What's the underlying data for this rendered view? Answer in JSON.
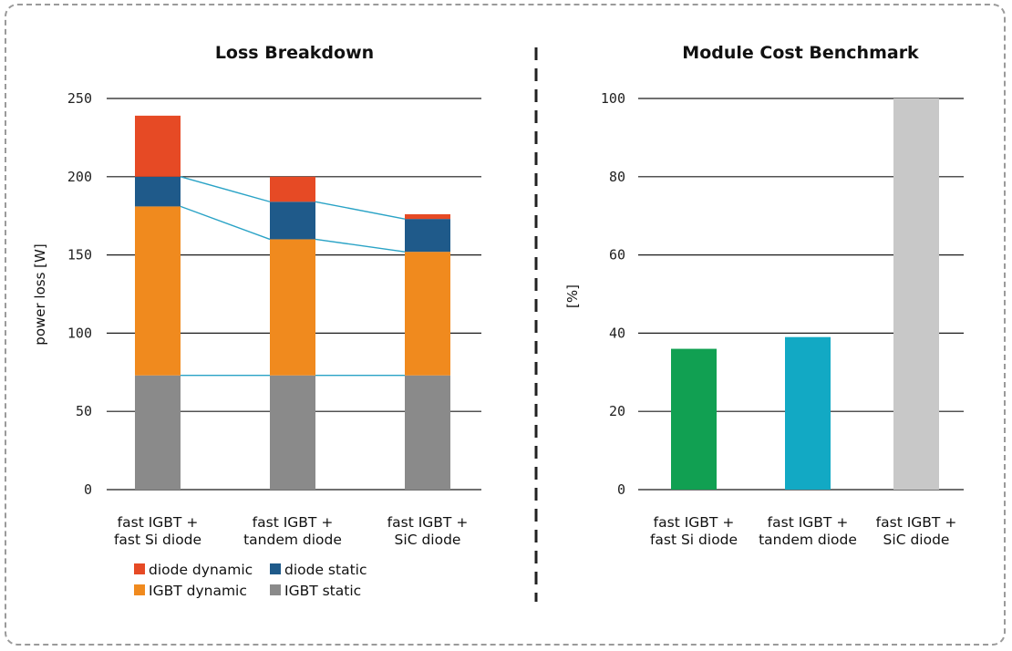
{
  "colors": {
    "diode_dynamic": "#e64a25",
    "diode_static": "#1f5a8a",
    "igbt_dynamic": "#f08a1e",
    "igbt_static": "#8a8a8a",
    "connector": "#2aa3c6",
    "cost_bars": [
      "#11a052",
      "#12a9c4",
      "#c8c8c8"
    ]
  },
  "chart_data": [
    {
      "type": "bar",
      "stacked": true,
      "title": "Loss Breakdown",
      "ylabel": "power loss [W]",
      "xlabel": "",
      "ylim": [
        0,
        250
      ],
      "yticks": [
        0,
        50,
        100,
        150,
        200,
        250
      ],
      "grid": true,
      "legend_position": "bottom",
      "categories": [
        [
          "fast IGBT +",
          "fast Si diode"
        ],
        [
          "fast IGBT +",
          "tandem diode"
        ],
        [
          "fast IGBT +",
          "SiC diode"
        ]
      ],
      "series": [
        {
          "name": "IGBT static",
          "key": "igbt_static",
          "values": [
            73,
            73,
            73
          ]
        },
        {
          "name": "IGBT dynamic",
          "key": "igbt_dynamic",
          "values": [
            108,
            87,
            79
          ]
        },
        {
          "name": "diode static",
          "key": "diode_static",
          "values": [
            19,
            24,
            21
          ]
        },
        {
          "name": "diode dynamic",
          "key": "diode_dynamic",
          "values": [
            39,
            16,
            3
          ]
        }
      ],
      "legend": [
        {
          "name": "diode dynamic",
          "key": "diode_dynamic"
        },
        {
          "name": "diode static",
          "key": "diode_static"
        },
        {
          "name": "IGBT dynamic",
          "key": "igbt_dynamic"
        },
        {
          "name": "IGBT static",
          "key": "igbt_static"
        }
      ]
    },
    {
      "type": "bar",
      "title": "Module Cost Benchmark",
      "ylabel": "[%]",
      "xlabel": "",
      "ylim": [
        0,
        100
      ],
      "yticks": [
        0,
        20,
        40,
        60,
        80,
        100
      ],
      "grid": true,
      "categories": [
        [
          "fast IGBT +",
          "fast Si diode"
        ],
        [
          "fast IGBT +",
          "tandem diode"
        ],
        [
          "fast IGBT +",
          "SiC diode"
        ]
      ],
      "values": [
        36,
        39,
        100
      ]
    }
  ]
}
